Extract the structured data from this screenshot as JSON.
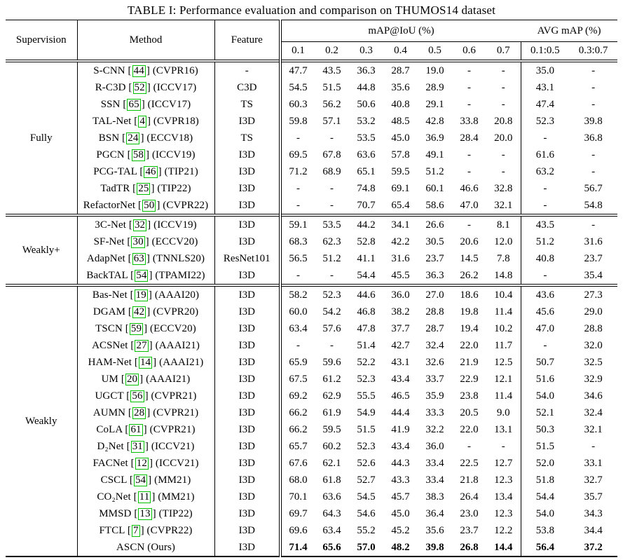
{
  "title": "TABLE I: Performance evaluation and comparison on THUMOS14 dataset",
  "colors": {
    "citation_box_green": "#00c000",
    "text": "#000000",
    "background": "#ffffff"
  },
  "header": {
    "supervision": "Supervision",
    "method": "Method",
    "feature": "Feature",
    "map_group": "mAP@IoU (%)",
    "avg_group": "AVG mAP (%)",
    "iou_labels": [
      "0.1",
      "0.2",
      "0.3",
      "0.4",
      "0.5",
      "0.6",
      "0.7"
    ],
    "avg_labels": [
      "0.1:0.5",
      "0.3:0.7"
    ]
  },
  "sections": [
    {
      "supervision": "Fully",
      "rows": [
        {
          "method": "S-CNN",
          "ref": "44",
          "venue": "(CVPR16)",
          "feature": "-",
          "bold": false,
          "values": [
            "47.7",
            "43.5",
            "36.3",
            "28.7",
            "19.0",
            "-",
            "-",
            "35.0",
            "-"
          ]
        },
        {
          "method": "R-C3D",
          "ref": "52",
          "venue": "(ICCV17)",
          "feature": "C3D",
          "bold": false,
          "values": [
            "54.5",
            "51.5",
            "44.8",
            "35.6",
            "28.9",
            "-",
            "-",
            "43.1",
            "-"
          ]
        },
        {
          "method": "SSN",
          "ref": "65",
          "venue": "(ICCV17)",
          "feature": "TS",
          "bold": false,
          "values": [
            "60.3",
            "56.2",
            "50.6",
            "40.8",
            "29.1",
            "-",
            "-",
            "47.4",
            "-"
          ]
        },
        {
          "method": "TAL-Net",
          "ref": "4",
          "venue": "(CVPR18)",
          "feature": "I3D",
          "bold": false,
          "values": [
            "59.8",
            "57.1",
            "53.2",
            "48.5",
            "42.8",
            "33.8",
            "20.8",
            "52.3",
            "39.8"
          ]
        },
        {
          "method": "BSN",
          "ref": "24",
          "venue": "(ECCV18)",
          "feature": "TS",
          "bold": false,
          "values": [
            "-",
            "-",
            "53.5",
            "45.0",
            "36.9",
            "28.4",
            "20.0",
            "-",
            "36.8"
          ]
        },
        {
          "method": "PGCN",
          "ref": "58",
          "venue": "(ICCV19)",
          "feature": "I3D",
          "bold": false,
          "values": [
            "69.5",
            "67.8",
            "63.6",
            "57.8",
            "49.1",
            "-",
            "-",
            "61.6",
            "-"
          ]
        },
        {
          "method": "PCG-TAL",
          "ref": "46",
          "venue": "(TIP21)",
          "feature": "I3D",
          "bold": false,
          "values": [
            "71.2",
            "68.9",
            "65.1",
            "59.5",
            "51.2",
            "-",
            "-",
            "63.2",
            "-"
          ]
        },
        {
          "method": "TadTR",
          "ref": "25",
          "venue": "(TIP22)",
          "feature": "I3D",
          "bold": false,
          "values": [
            "-",
            "-",
            "74.8",
            "69.1",
            "60.1",
            "46.6",
            "32.8",
            "-",
            "56.7"
          ]
        },
        {
          "method": "RefactorNet",
          "ref": "50",
          "venue": "(CVPR22)",
          "feature": "I3D",
          "bold": false,
          "values": [
            "-",
            "-",
            "70.7",
            "65.4",
            "58.6",
            "47.0",
            "32.1",
            "-",
            "54.8"
          ]
        }
      ]
    },
    {
      "supervision": "Weakly+",
      "rows": [
        {
          "method": "3C-Net",
          "ref": "32",
          "venue": "(ICCV19)",
          "feature": "I3D",
          "bold": false,
          "values": [
            "59.1",
            "53.5",
            "44.2",
            "34.1",
            "26.6",
            "-",
            "8.1",
            "43.5",
            "-"
          ]
        },
        {
          "method": "SF-Net",
          "ref": "30",
          "venue": "(ECCV20)",
          "feature": "I3D",
          "bold": false,
          "values": [
            "68.3",
            "62.3",
            "52.8",
            "42.2",
            "30.5",
            "20.6",
            "12.0",
            "51.2",
            "31.6"
          ]
        },
        {
          "method": "AdapNet",
          "ref": "63",
          "venue": "(TNNLS20)",
          "feature": "ResNet101",
          "bold": false,
          "values": [
            "56.5",
            "51.2",
            "41.1",
            "31.6",
            "23.7",
            "14.5",
            "7.8",
            "40.8",
            "23.7"
          ]
        },
        {
          "method": "BackTAL",
          "ref": "54",
          "venue": "(TPAMI22)",
          "feature": "I3D",
          "bold": false,
          "values": [
            "-",
            "-",
            "54.4",
            "45.5",
            "36.3",
            "26.2",
            "14.8",
            "-",
            "35.4"
          ]
        }
      ]
    },
    {
      "supervision": "Weakly",
      "rows": [
        {
          "method": "Bas-Net",
          "ref": "19",
          "venue": "(AAAI20)",
          "feature": "I3D",
          "bold": false,
          "values": [
            "58.2",
            "52.3",
            "44.6",
            "36.0",
            "27.0",
            "18.6",
            "10.4",
            "43.6",
            "27.3"
          ]
        },
        {
          "method": "DGAM",
          "ref": "42",
          "venue": "(CVPR20)",
          "feature": "I3D",
          "bold": false,
          "values": [
            "60.0",
            "54.2",
            "46.8",
            "38.2",
            "28.8",
            "19.8",
            "11.4",
            "45.6",
            "29.0"
          ]
        },
        {
          "method": "TSCN",
          "ref": "59",
          "venue": "(ECCV20)",
          "feature": "I3D",
          "bold": false,
          "values": [
            "63.4",
            "57.6",
            "47.8",
            "37.7",
            "28.7",
            "19.4",
            "10.2",
            "47.0",
            "28.8"
          ]
        },
        {
          "method": "ACSNet",
          "ref": "27",
          "venue": "(AAAI21)",
          "feature": "I3D",
          "bold": false,
          "values": [
            "-",
            "-",
            "51.4",
            "42.7",
            "32.4",
            "22.0",
            "11.7",
            "-",
            "32.0"
          ]
        },
        {
          "method": "HAM-Net",
          "ref": "14",
          "venue": "(AAAI21)",
          "feature": "I3D",
          "bold": false,
          "values": [
            "65.9",
            "59.6",
            "52.2",
            "43.1",
            "32.6",
            "21.9",
            "12.5",
            "50.7",
            "32.5"
          ]
        },
        {
          "method": "UM",
          "ref": "20",
          "venue": "(AAAI21)",
          "feature": "I3D",
          "bold": false,
          "values": [
            "67.5",
            "61.2",
            "52.3",
            "43.4",
            "33.7",
            "22.9",
            "12.1",
            "51.6",
            "32.9"
          ]
        },
        {
          "method": "UGCT",
          "ref": "56",
          "venue": "(CVPR21)",
          "feature": "I3D",
          "bold": false,
          "values": [
            "69.2",
            "62.9",
            "55.5",
            "46.5",
            "35.9",
            "23.8",
            "11.4",
            "54.0",
            "34.6"
          ]
        },
        {
          "method": "AUMN",
          "ref": "28",
          "venue": "(CVPR21)",
          "feature": "I3D",
          "bold": false,
          "values": [
            "66.2",
            "61.9",
            "54.9",
            "44.4",
            "33.3",
            "20.5",
            "9.0",
            "52.1",
            "32.4"
          ]
        },
        {
          "method": "CoLA",
          "ref": "61",
          "venue": "(CVPR21)",
          "feature": "I3D",
          "bold": false,
          "values": [
            "66.2",
            "59.5",
            "51.5",
            "41.9",
            "32.2",
            "22.0",
            "13.1",
            "50.3",
            "32.1"
          ]
        },
        {
          "method": "D₂Net",
          "ref": "31",
          "venue": "(ICCV21)",
          "feature": "I3D",
          "bold": false,
          "values": [
            "65.7",
            "60.2",
            "52.3",
            "43.4",
            "36.0",
            "-",
            "-",
            "51.5",
            "-"
          ]
        },
        {
          "method": "FACNet",
          "ref": "12",
          "venue": "(ICCV21)",
          "feature": "I3D",
          "bold": false,
          "values": [
            "67.6",
            "62.1",
            "52.6",
            "44.3",
            "33.4",
            "22.5",
            "12.7",
            "52.0",
            "33.1"
          ]
        },
        {
          "method": "CSCL",
          "ref": "54",
          "venue": "(MM21)",
          "feature": "I3D",
          "bold": false,
          "values": [
            "68.0",
            "61.8",
            "52.7",
            "43.3",
            "33.4",
            "21.8",
            "12.3",
            "51.8",
            "32.7"
          ]
        },
        {
          "method": "CO₂Net",
          "ref": "11",
          "venue": "(MM21)",
          "feature": "I3D",
          "bold": false,
          "values": [
            "70.1",
            "63.6",
            "54.5",
            "45.7",
            "38.3",
            "26.4",
            "13.4",
            "54.4",
            "35.7"
          ]
        },
        {
          "method": "MMSD",
          "ref": "13",
          "venue": "(TIP22)",
          "feature": "I3D",
          "bold": false,
          "values": [
            "69.7",
            "64.3",
            "54.6",
            "45.0",
            "36.4",
            "23.0",
            "12.3",
            "54.0",
            "34.3"
          ]
        },
        {
          "method": "FTCL",
          "ref": "7",
          "venue": "(CVPR22)",
          "feature": "I3D",
          "bold": false,
          "values": [
            "69.6",
            "63.4",
            "55.2",
            "45.2",
            "35.6",
            "23.7",
            "12.2",
            "53.8",
            "34.4"
          ]
        },
        {
          "method": "ASCN",
          "ref": "",
          "venue": "(Ours)",
          "feature": "I3D",
          "bold": true,
          "values": [
            "71.4",
            "65.6",
            "57.0",
            "48.2",
            "39.8",
            "26.8",
            "14.4",
            "56.4",
            "37.2"
          ]
        }
      ]
    }
  ]
}
